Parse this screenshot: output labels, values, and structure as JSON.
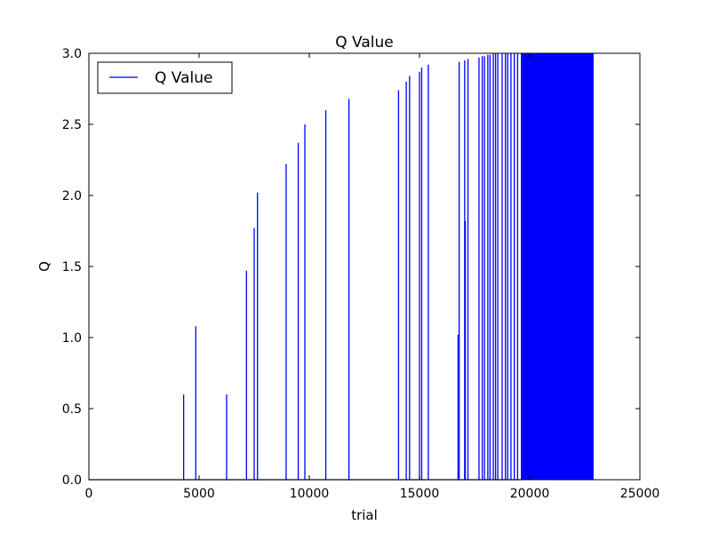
{
  "chart_data": {
    "type": "line",
    "title": "Q Value",
    "xlabel": "trial",
    "ylabel": "Q",
    "xlim": [
      0,
      25000
    ],
    "ylim": [
      0.0,
      3.0
    ],
    "xticks": [
      0,
      5000,
      10000,
      15000,
      20000,
      25000
    ],
    "xtick_labels": [
      "0",
      "5000",
      "10000",
      "15000",
      "20000",
      "25000"
    ],
    "yticks": [
      0.0,
      0.5,
      1.0,
      1.5,
      2.0,
      2.5,
      3.0
    ],
    "ytick_labels": [
      "0.0",
      "0.5",
      "1.0",
      "1.5",
      "2.0",
      "2.5",
      "3.0"
    ],
    "grid": false,
    "legend": {
      "position": "top-left",
      "entries": [
        "Q Value"
      ]
    },
    "series": [
      {
        "name": "Q Value",
        "color": "#0000ff",
        "baseline": 0.0,
        "spikes": [
          {
            "x": 4300,
            "y": 0.6
          },
          {
            "x": 4850,
            "y": 1.08
          },
          {
            "x": 6250,
            "y": 0.6
          },
          {
            "x": 7150,
            "y": 1.47
          },
          {
            "x": 7500,
            "y": 1.77
          },
          {
            "x": 7650,
            "y": 2.02
          },
          {
            "x": 8950,
            "y": 2.22
          },
          {
            "x": 9500,
            "y": 2.37
          },
          {
            "x": 9800,
            "y": 2.5
          },
          {
            "x": 10750,
            "y": 2.6
          },
          {
            "x": 11800,
            "y": 2.68
          },
          {
            "x": 14050,
            "y": 2.74
          },
          {
            "x": 14400,
            "y": 2.8
          },
          {
            "x": 14550,
            "y": 2.84
          },
          {
            "x": 15000,
            "y": 2.87
          },
          {
            "x": 15100,
            "y": 2.9
          },
          {
            "x": 15400,
            "y": 2.92
          },
          {
            "x": 16750,
            "y": 1.02
          },
          {
            "x": 16800,
            "y": 2.94
          },
          {
            "x": 17050,
            "y": 2.95
          },
          {
            "x": 17080,
            "y": 1.82
          },
          {
            "x": 17200,
            "y": 2.96
          },
          {
            "x": 17700,
            "y": 2.97
          },
          {
            "x": 17850,
            "y": 2.98
          },
          {
            "x": 17950,
            "y": 2.98
          },
          {
            "x": 18100,
            "y": 2.99
          },
          {
            "x": 18200,
            "y": 2.99
          },
          {
            "x": 18350,
            "y": 3.0
          },
          {
            "x": 18450,
            "y": 3.0
          },
          {
            "x": 18550,
            "y": 3.0
          },
          {
            "x": 18750,
            "y": 3.0
          },
          {
            "x": 18900,
            "y": 3.0
          },
          {
            "x": 19000,
            "y": 3.0
          },
          {
            "x": 19150,
            "y": 3.0
          },
          {
            "x": 19300,
            "y": 3.0
          },
          {
            "x": 19450,
            "y": 3.0
          }
        ],
        "dense_band": {
          "x_start": 19600,
          "x_end": 22900,
          "y_low": 0.0,
          "y_high": 3.0
        }
      }
    ]
  }
}
